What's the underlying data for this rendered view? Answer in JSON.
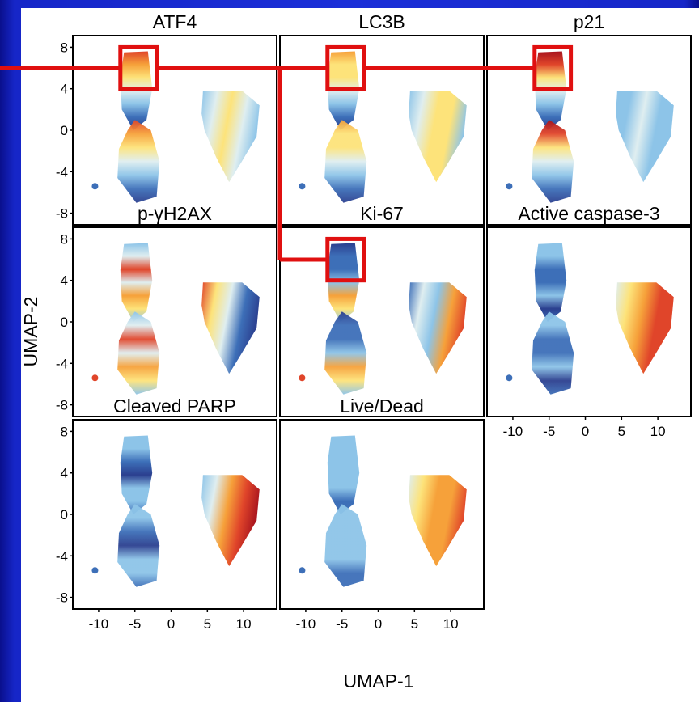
{
  "chart_data": {
    "type": "scatter",
    "xlabel": "UMAP-1",
    "ylabel": "UMAP-2",
    "x_ticks": [
      -10,
      -5,
      0,
      5,
      10
    ],
    "y_ticks": [
      8,
      4,
      0,
      -4,
      -8
    ],
    "xlim": [
      -12,
      13
    ],
    "ylim": [
      -8.5,
      8.5
    ],
    "colormap": [
      "#2b3f8f",
      "#3d6fb8",
      "#8dc4e8",
      "#dfeef0",
      "#fde37a",
      "#f6a13a",
      "#e0452a",
      "#a8141e"
    ],
    "highlight_color": "#e01010",
    "panels": [
      {
        "title": "ATF4",
        "highlight": true
      },
      {
        "title": "LC3B",
        "highlight": true
      },
      {
        "title": "p21",
        "highlight": true
      },
      {
        "title": "p-γH2AX",
        "highlight": false
      },
      {
        "title": "Ki-67",
        "highlight": true
      },
      {
        "title": "Active caspase-3",
        "highlight": false
      },
      {
        "title": "Cleaved PARP",
        "highlight": false
      },
      {
        "title": "Live/Dead",
        "highlight": false
      }
    ],
    "highlight_region": {
      "x": [
        -7,
        -2
      ],
      "y": [
        4,
        8
      ]
    }
  }
}
